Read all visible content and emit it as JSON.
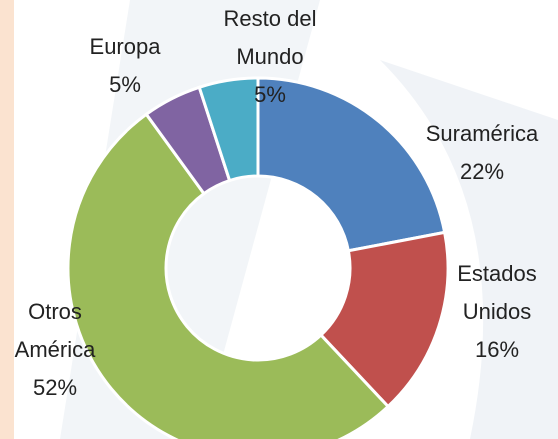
{
  "chart_data": {
    "type": "donut",
    "categories": [
      "Suramérica",
      "Estados Unidos",
      "Otros América",
      "Europa",
      "Resto del Mundo"
    ],
    "values": [
      22,
      16,
      52,
      5,
      5
    ],
    "value_labels": [
      "22%",
      "16%",
      "52%",
      "5%",
      "5%"
    ],
    "colors": [
      "#4f81bd",
      "#c0504d",
      "#9bbb59",
      "#8064a2",
      "#4bacc6"
    ]
  }
}
